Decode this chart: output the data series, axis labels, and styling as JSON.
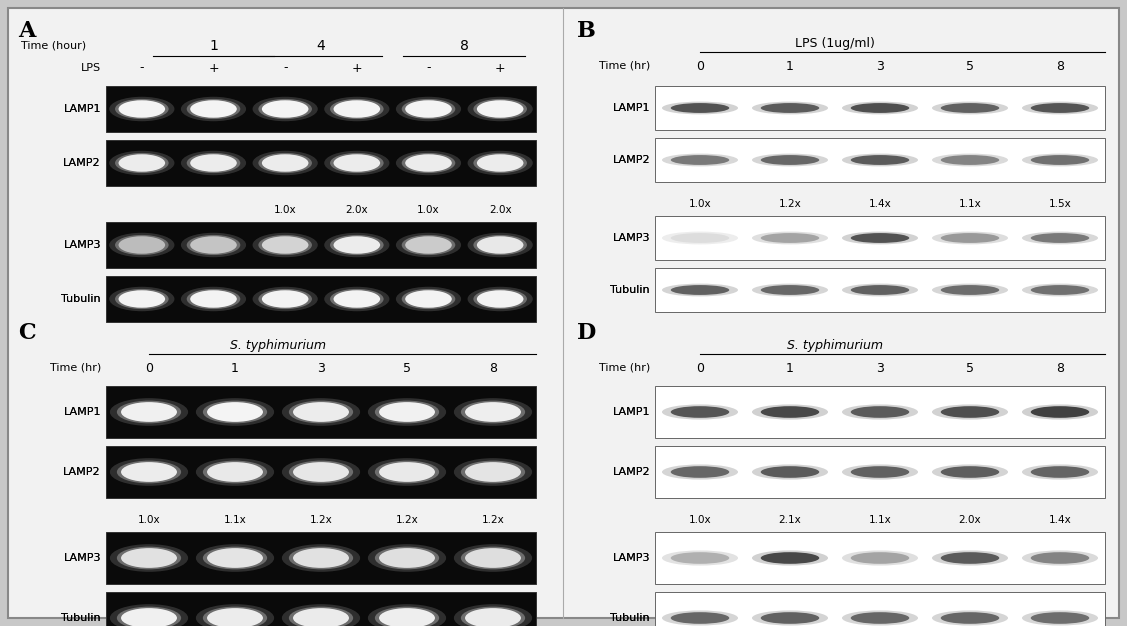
{
  "bg_color": "#c8c8c8",
  "panel_bg": "#f5f5f5",
  "panel_A": {
    "label": "A",
    "time_label": "Time (hour)",
    "time_points_grouped": [
      "1",
      "4",
      "8"
    ],
    "condition_label": "LPS",
    "conditions": [
      "-",
      "+",
      "-",
      "+",
      "-",
      "+"
    ],
    "rows": [
      "LAMP1",
      "LAMP2",
      "LAMP3",
      "Tubulin"
    ],
    "fold_labels": [
      "",
      "",
      "1.0x",
      "2.0x",
      "1.0x",
      "2.0x"
    ],
    "n_lanes": 6
  },
  "panel_B": {
    "label": "B",
    "title": "LPS (1ug/ml)",
    "time_label": "Time (hr)",
    "time_points": [
      "0",
      "1",
      "3",
      "5",
      "8"
    ],
    "rows": [
      "LAMP1",
      "LAMP2",
      "LAMP3",
      "Tubulin"
    ],
    "fold_labels": [
      "1.0x",
      "1.2x",
      "1.4x",
      "1.1x",
      "1.5x"
    ],
    "n_lanes": 5
  },
  "panel_C": {
    "label": "C",
    "title": "S. typhimurium",
    "time_label": "Time (hr)",
    "time_points": [
      "0",
      "1",
      "3",
      "5",
      "8"
    ],
    "rows": [
      "LAMP1",
      "LAMP2",
      "LAMP3",
      "Tubulin"
    ],
    "fold_labels": [
      "1.0x",
      "1.1x",
      "1.2x",
      "1.2x",
      "1.2x"
    ],
    "n_lanes": 5
  },
  "panel_D": {
    "label": "D",
    "title": "S. typhimurium",
    "time_label": "Time (hr)",
    "time_points": [
      "0",
      "1",
      "3",
      "5",
      "8"
    ],
    "rows": [
      "LAMP1",
      "LAMP2",
      "LAMP3",
      "Tubulin"
    ],
    "fold_labels": [
      "1.0x",
      "2.1x",
      "1.1x",
      "2.0x",
      "1.4x"
    ],
    "n_lanes": 5
  }
}
